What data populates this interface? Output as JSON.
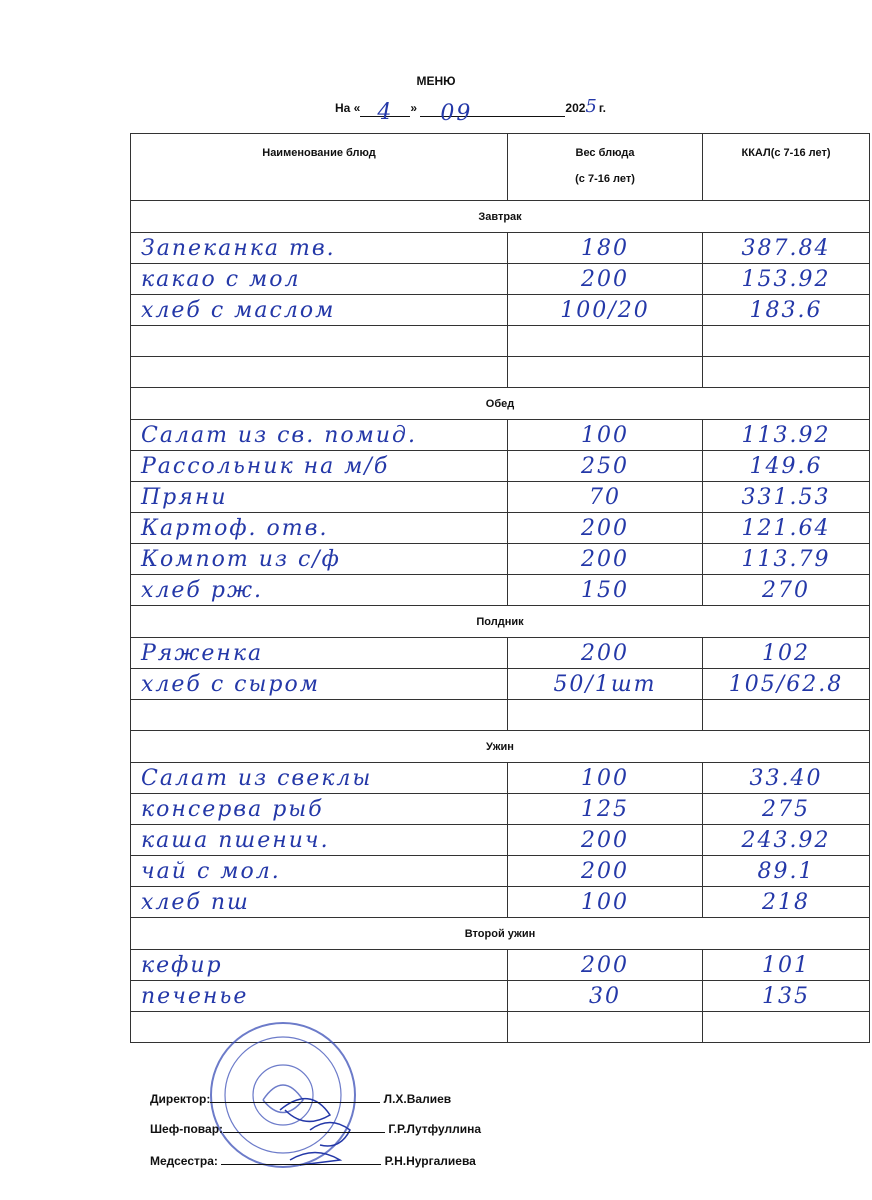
{
  "header": {
    "title": "МЕНЮ",
    "date_prefix": "На «",
    "day": "4",
    "date_mid": "»",
    "month": "09",
    "year_prefix": "202",
    "year_digit": "5",
    "year_suffix": "г."
  },
  "columns": [
    "Наименование блюд",
    "Вес блюда",
    "(с 7-16 лет)",
    "ККАЛ(с 7-16 лет)"
  ],
  "sections": [
    {
      "name": "Завтрак",
      "rows": [
        {
          "dish": "Запеканка тв.",
          "weight": "180",
          "kcal": "387.84"
        },
        {
          "dish": "какао с мол",
          "weight": "200",
          "kcal": "153.92"
        },
        {
          "dish": "хлеб с маслом",
          "weight": "100/20",
          "kcal": "183.6"
        },
        {
          "dish": "",
          "weight": "",
          "kcal": ""
        },
        {
          "dish": "",
          "weight": "",
          "kcal": ""
        }
      ]
    },
    {
      "name": "Обед",
      "rows": [
        {
          "dish": "Салат из св. помид.",
          "weight": "100",
          "kcal": "113.92"
        },
        {
          "dish": "Рассольник на м/б",
          "weight": "250",
          "kcal": "149.6"
        },
        {
          "dish": "Пряни",
          "weight": "70",
          "kcal": "331.53"
        },
        {
          "dish": "Картоф. отв.",
          "weight": "200",
          "kcal": "121.64"
        },
        {
          "dish": "Компот из с/ф",
          "weight": "200",
          "kcal": "113.79"
        },
        {
          "dish": "хлеб рж.",
          "weight": "150",
          "kcal": "270"
        }
      ]
    },
    {
      "name": "Полдник",
      "rows": [
        {
          "dish": "Ряженка",
          "weight": "200",
          "kcal": "102"
        },
        {
          "dish": "хлеб с сыром",
          "weight": "50/1шт",
          "kcal": "105/62.8"
        },
        {
          "dish": "",
          "weight": "",
          "kcal": ""
        }
      ]
    },
    {
      "name": "Ужин",
      "rows": [
        {
          "dish": "Салат из свеклы",
          "weight": "100",
          "kcal": "33.40"
        },
        {
          "dish": "консерва рыб",
          "weight": "125",
          "kcal": "275"
        },
        {
          "dish": "каша пшенич.",
          "weight": "200",
          "kcal": "243.92"
        },
        {
          "dish": "чай с мол.",
          "weight": "200",
          "kcal": "89.1"
        },
        {
          "dish": "хлеб пш",
          "weight": "100",
          "kcal": "218"
        }
      ]
    },
    {
      "name": "Второй ужин",
      "rows": [
        {
          "dish": "кефир",
          "weight": "200",
          "kcal": "101"
        },
        {
          "dish": "печенье",
          "weight": "30",
          "kcal": "135"
        },
        {
          "dish": "",
          "weight": "",
          "kcal": ""
        }
      ]
    }
  ],
  "signatures": [
    {
      "role": "Директор:",
      "name": "Л.Х.Валиев"
    },
    {
      "role": "Шеф-повар:",
      "name": "Г.Р.Лутфуллина"
    },
    {
      "role": "Медсестра:",
      "name": "Р.Н.Нургалиева"
    }
  ],
  "stamp": {
    "color": "#3b4fb8"
  },
  "colors": {
    "handwriting": "#2438a8"
  }
}
